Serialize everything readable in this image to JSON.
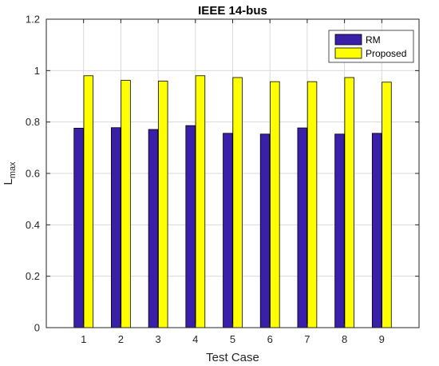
{
  "chart_data": {
    "type": "bar",
    "title": "IEEE 14-bus",
    "xlabel": "Test Case",
    "ylabel_main": "L",
    "ylabel_sub": "max",
    "categories": [
      "1",
      "2",
      "3",
      "4",
      "5",
      "6",
      "7",
      "8",
      "9"
    ],
    "series": [
      {
        "name": "RM",
        "color": "#3a1fa8",
        "values": [
          0.776,
          0.778,
          0.771,
          0.786,
          0.756,
          0.753,
          0.777,
          0.753,
          0.756
        ]
      },
      {
        "name": "Proposed",
        "color": "#ffff00",
        "values": [
          0.98,
          0.962,
          0.959,
          0.98,
          0.973,
          0.957,
          0.957,
          0.973,
          0.955
        ]
      }
    ],
    "ylim": [
      0,
      1.2
    ],
    "xlim": [
      0,
      10
    ],
    "yticks": [
      "0",
      "0.2",
      "0.4",
      "0.6",
      "0.8",
      "1",
      "1.2"
    ],
    "grid": true,
    "legend_position": "top-right"
  }
}
